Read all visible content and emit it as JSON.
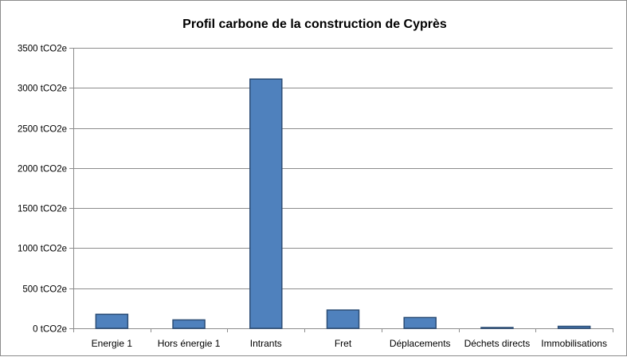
{
  "chart_data": {
    "type": "bar",
    "title": "Profil carbone de la construction de Cyprès",
    "categories": [
      "Energie 1",
      "Hors énergie 1",
      "Intrants",
      "Fret",
      "Déplacements",
      "Déchets directs",
      "Immobilisations"
    ],
    "values": [
      175,
      105,
      3110,
      228,
      135,
      10,
      25
    ],
    "ylim": [
      0,
      3500
    ],
    "yticks": [
      0,
      500,
      1000,
      1500,
      2000,
      2500,
      3000,
      3500
    ],
    "ytick_unit": "tCO2e",
    "xlabel": "",
    "ylabel": "",
    "grid": true,
    "legend": "none",
    "bar_color": "#4f81bd",
    "bar_edge_color": "#2c4d75"
  }
}
